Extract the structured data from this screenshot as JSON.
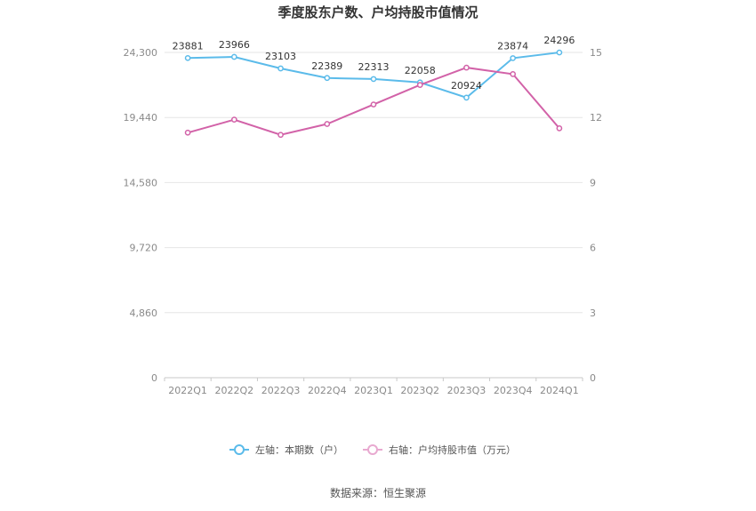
{
  "chart_data": {
    "type": "line",
    "title": "季度股东户数、户均持股市值情况",
    "categories": [
      "2022Q1",
      "2022Q2",
      "2022Q3",
      "2022Q4",
      "2023Q1",
      "2023Q2",
      "2023Q3",
      "2023Q4",
      "2024Q1"
    ],
    "series": [
      {
        "name": "左轴：本期数（户）",
        "axis": "left",
        "color": "#5bbbea",
        "values": [
          23881,
          23966,
          23103,
          22389,
          22313,
          22058,
          20924,
          23874,
          24296
        ],
        "labels": [
          "23881",
          "23966",
          "23103",
          "22389",
          "22313",
          "22058",
          "20924",
          "23874",
          "24296"
        ]
      },
      {
        "name": "右轴：户均持股市值（万元）",
        "axis": "right",
        "color": "#d262a8",
        "values": [
          11.3,
          11.9,
          11.2,
          11.7,
          12.6,
          13.5,
          14.3,
          14.0,
          11.5
        ]
      }
    ],
    "left_axis": {
      "ylim": [
        0,
        24300
      ],
      "ticks": [
        "0",
        "4,860",
        "9,720",
        "14,580",
        "19,440",
        "24,300"
      ],
      "tick_values": [
        0,
        4860,
        9720,
        14580,
        19440,
        24300
      ]
    },
    "right_axis": {
      "ylim": [
        0,
        15
      ],
      "ticks": [
        "0",
        "3",
        "6",
        "9",
        "12",
        "15"
      ],
      "tick_values": [
        0,
        3,
        6,
        9,
        12,
        15
      ]
    },
    "grid": true,
    "legend_position": "bottom"
  },
  "source_text": "数据来源：恒生聚源"
}
